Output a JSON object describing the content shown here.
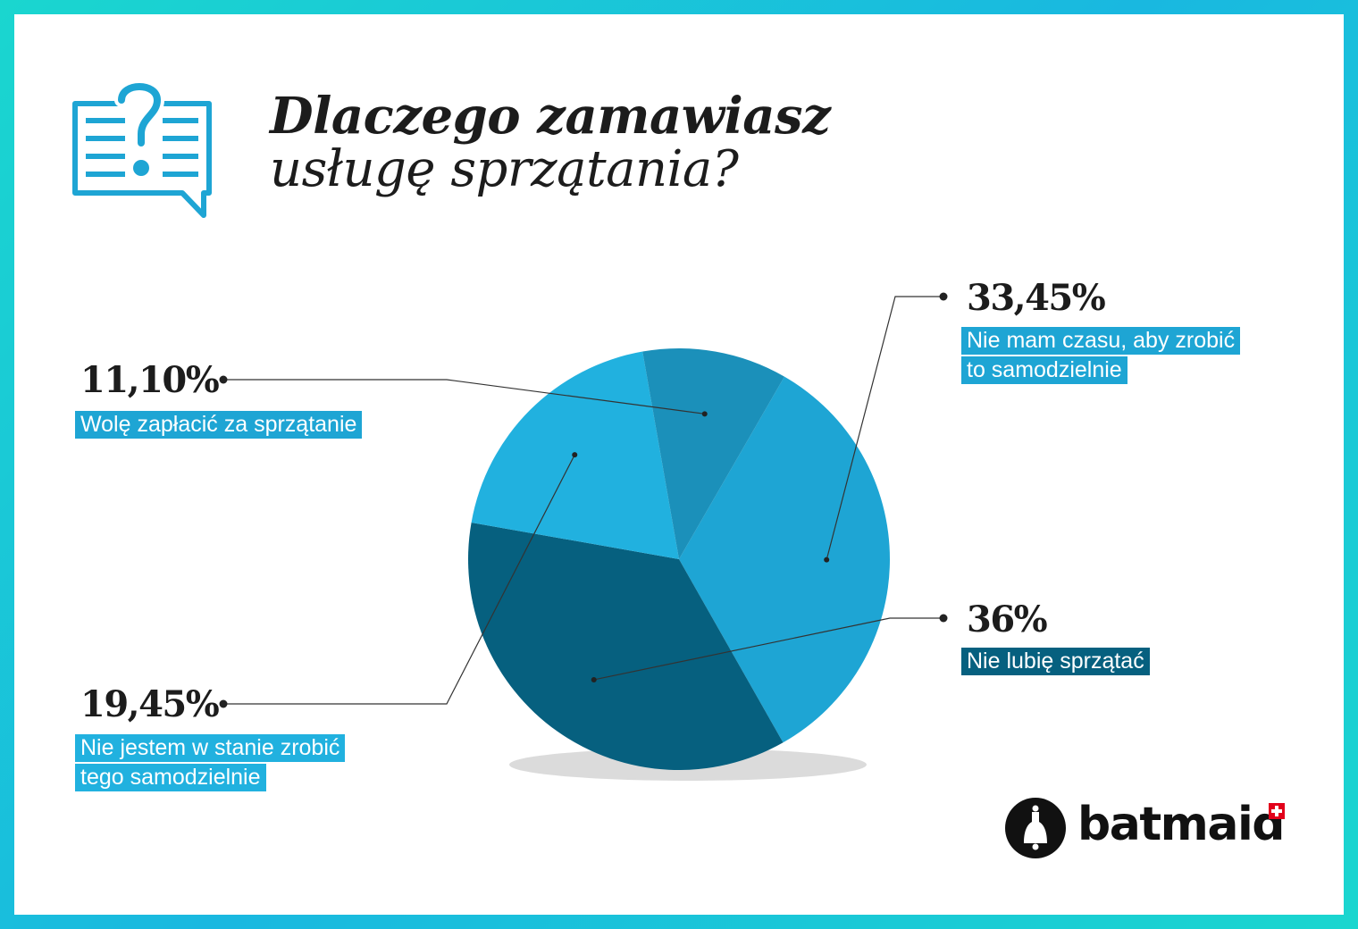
{
  "title": {
    "line1": "Dlaczego zamawiasz",
    "line2": "usługę sprzątania?"
  },
  "icon": "question-speech-bubble-icon",
  "brand": {
    "name": "batmaid",
    "logo_icon": "bell-icon",
    "badge_icon": "swiss-cross-icon",
    "badge_color": "#e2001a"
  },
  "colors": {
    "border": "#18c4d8",
    "accent": "#1ea5d4"
  },
  "chart_data": {
    "type": "pie",
    "slices": [
      {
        "value": 33.45,
        "value_label": "33,45%",
        "label_lines": [
          "Nie mam czasu, aby zrobić",
          "to samodzielnie"
        ],
        "color": "#1ea5d4"
      },
      {
        "value": 36,
        "value_label": "36%",
        "label_lines": [
          "Nie lubię sprzątać"
        ],
        "color": "#06607f"
      },
      {
        "value": 19.45,
        "value_label": "19,45%",
        "label_lines": [
          "Nie jestem w stanie zrobić",
          "tego samodzielnie"
        ],
        "color": "#21b1df"
      },
      {
        "value": 11.1,
        "value_label": "11,10%",
        "label_lines": [
          "Wolę zapłacić za sprzątanie"
        ],
        "color": "#1b90ba"
      }
    ]
  }
}
